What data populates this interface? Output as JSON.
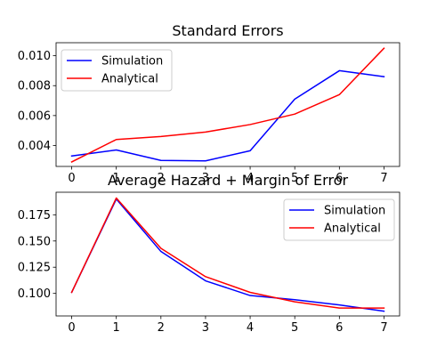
{
  "chart_data": [
    {
      "type": "line",
      "title": "Standard Errors",
      "xlabel": "",
      "ylabel": "",
      "x": [
        0,
        1,
        2,
        3,
        4,
        5,
        6,
        7
      ],
      "xlim": [
        -0.35,
        7.35
      ],
      "ylim": [
        0.0026,
        0.01087
      ],
      "xticks": [
        "0",
        "1",
        "2",
        "3",
        "4",
        "5",
        "6",
        "7"
      ],
      "yticks": [
        "0.004",
        "0.006",
        "0.008",
        "0.010"
      ],
      "ytick_values": [
        0.004,
        0.006,
        0.008,
        0.01
      ],
      "grid": false,
      "legend_position": "upper-left",
      "series": [
        {
          "name": "Simulation",
          "color": "#0000ff",
          "values": [
            0.0033,
            0.0037,
            0.003,
            0.00297,
            0.00365,
            0.0071,
            0.009,
            0.0086
          ]
        },
        {
          "name": "Analytical",
          "color": "#ff0000",
          "values": [
            0.0029,
            0.0044,
            0.0046,
            0.0049,
            0.0054,
            0.0061,
            0.0074,
            0.0105
          ]
        }
      ]
    },
    {
      "type": "line",
      "title": "Average Hazard + Margin of Error",
      "xlabel": "",
      "ylabel": "",
      "x": [
        0,
        1,
        2,
        3,
        4,
        5,
        6,
        7
      ],
      "xlim": [
        -0.35,
        7.35
      ],
      "ylim": [
        0.0785,
        0.1965
      ],
      "xticks": [
        "0",
        "1",
        "2",
        "3",
        "4",
        "5",
        "6",
        "7"
      ],
      "yticks": [
        "0.100",
        "0.125",
        "0.150",
        "0.175"
      ],
      "ytick_values": [
        0.1,
        0.125,
        0.15,
        0.175
      ],
      "grid": false,
      "legend_position": "upper-right",
      "series": [
        {
          "name": "Simulation",
          "color": "#0000ff",
          "values": [
            0.101,
            0.19,
            0.14,
            0.112,
            0.098,
            0.094,
            0.089,
            0.083
          ]
        },
        {
          "name": "Analytical",
          "color": "#ff0000",
          "values": [
            0.101,
            0.191,
            0.143,
            0.116,
            0.101,
            0.092,
            0.086,
            0.086
          ]
        }
      ]
    }
  ]
}
